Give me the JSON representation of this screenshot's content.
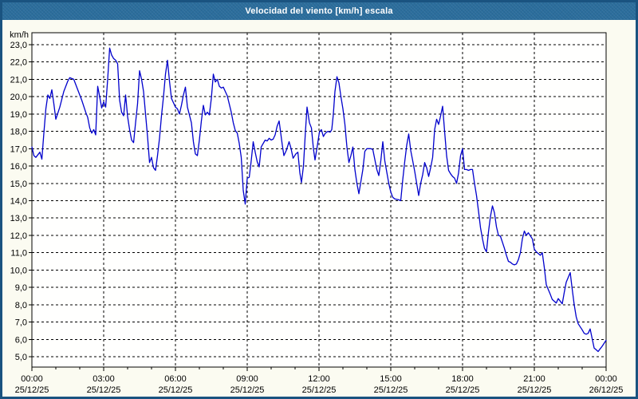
{
  "window": {
    "title": "Velocidad del viento [km/h] escala"
  },
  "colors": {
    "titlebar_bg": "#2b6d9c",
    "titlebar_text": "#ffffff",
    "window_border": "#1a5380",
    "window_bg": "#fbfbf1",
    "plot_bg": "#fffffe",
    "grid": "#000000",
    "line": "#0000cc",
    "label": "#000000"
  },
  "chart_data": {
    "type": "line",
    "title": "Velocidad del viento [km/h] escala",
    "ylabel": "km/h",
    "xlabel": "",
    "legend": "none",
    "grid": "dashed",
    "ylim": [
      4.4,
      23.7
    ],
    "y_ticks": {
      "min": 5,
      "max": 23,
      "step": 1,
      "labels": [
        "23,0",
        "22,0",
        "21,0",
        "20,0",
        "19,0",
        "18,0",
        "17,0",
        "16,0",
        "15,0",
        "14,0",
        "13,0",
        "12,0",
        "11,0",
        "10,0",
        "9,0",
        "8,0",
        "7,0",
        "6,0",
        "5,0"
      ]
    },
    "x_range_minutes": [
      0,
      1440
    ],
    "x_minor_tick_minutes": 60,
    "x_major_gridline_minutes": 180,
    "x_ticks": [
      {
        "minutes": 0,
        "time": "00:00",
        "date": "25/12/25"
      },
      {
        "minutes": 180,
        "time": "03:00",
        "date": "25/12/25"
      },
      {
        "minutes": 360,
        "time": "06:00",
        "date": "25/12/25"
      },
      {
        "minutes": 540,
        "time": "09:00",
        "date": "25/12/25"
      },
      {
        "minutes": 720,
        "time": "12:00",
        "date": "25/12/25"
      },
      {
        "minutes": 900,
        "time": "15:00",
        "date": "25/12/25"
      },
      {
        "minutes": 1080,
        "time": "18:00",
        "date": "25/12/25"
      },
      {
        "minutes": 1260,
        "time": "21:00",
        "date": "25/12/25"
      },
      {
        "minutes": 1440,
        "time": "00:00",
        "date": "26/12/25"
      }
    ],
    "series": [
      {
        "name": "Velocidad del viento",
        "color": "#0000cc",
        "points": [
          [
            0,
            17.1
          ],
          [
            5,
            16.6
          ],
          [
            10,
            16.5
          ],
          [
            20,
            16.8
          ],
          [
            25,
            16.4
          ],
          [
            30,
            17.9
          ],
          [
            35,
            19.3
          ],
          [
            40,
            20.1
          ],
          [
            45,
            19.9
          ],
          [
            50,
            20.4
          ],
          [
            55,
            19.6
          ],
          [
            60,
            18.7
          ],
          [
            70,
            19.4
          ],
          [
            80,
            20.3
          ],
          [
            90,
            20.9
          ],
          [
            95,
            21.1
          ],
          [
            105,
            21.0
          ],
          [
            115,
            20.4
          ],
          [
            125,
            19.8
          ],
          [
            135,
            19.1
          ],
          [
            140,
            18.8
          ],
          [
            145,
            18.2
          ],
          [
            150,
            17.9
          ],
          [
            155,
            18.1
          ],
          [
            160,
            17.8
          ],
          [
            165,
            20.6
          ],
          [
            170,
            20.0
          ],
          [
            175,
            19.35
          ],
          [
            180,
            19.7
          ],
          [
            185,
            19.4
          ],
          [
            190,
            21.0
          ],
          [
            195,
            22.8
          ],
          [
            200,
            22.4
          ],
          [
            205,
            22.2
          ],
          [
            210,
            22.1
          ],
          [
            215,
            21.9
          ],
          [
            220,
            19.8
          ],
          [
            225,
            19.1
          ],
          [
            230,
            18.9
          ],
          [
            235,
            20.1
          ],
          [
            240,
            18.85
          ],
          [
            245,
            18.1
          ],
          [
            250,
            17.5
          ],
          [
            255,
            17.35
          ],
          [
            260,
            18.5
          ],
          [
            265,
            19.6
          ],
          [
            270,
            21.5
          ],
          [
            275,
            21.0
          ],
          [
            280,
            20.3
          ],
          [
            285,
            19.0
          ],
          [
            290,
            17.7
          ],
          [
            295,
            16.2
          ],
          [
            300,
            16.5
          ],
          [
            305,
            15.9
          ],
          [
            310,
            15.75
          ],
          [
            315,
            16.6
          ],
          [
            320,
            17.6
          ],
          [
            325,
            18.9
          ],
          [
            330,
            20.0
          ],
          [
            335,
            21.3
          ],
          [
            340,
            22.1
          ],
          [
            345,
            20.9
          ],
          [
            350,
            19.9
          ],
          [
            360,
            19.4
          ],
          [
            365,
            19.3
          ],
          [
            370,
            19.0
          ],
          [
            375,
            19.5
          ],
          [
            380,
            20.1
          ],
          [
            385,
            20.55
          ],
          [
            390,
            19.4
          ],
          [
            400,
            18.5
          ],
          [
            405,
            17.4
          ],
          [
            410,
            16.7
          ],
          [
            415,
            16.6
          ],
          [
            420,
            17.5
          ],
          [
            425,
            18.6
          ],
          [
            430,
            19.5
          ],
          [
            435,
            18.95
          ],
          [
            440,
            19.1
          ],
          [
            445,
            18.95
          ],
          [
            450,
            19.9
          ],
          [
            455,
            21.3
          ],
          [
            460,
            20.85
          ],
          [
            465,
            21.0
          ],
          [
            470,
            20.6
          ],
          [
            475,
            20.5
          ],
          [
            480,
            20.55
          ],
          [
            485,
            20.3
          ],
          [
            490,
            20.05
          ],
          [
            500,
            19.1
          ],
          [
            505,
            18.5
          ],
          [
            510,
            18.05
          ],
          [
            515,
            17.9
          ],
          [
            520,
            17.3
          ],
          [
            525,
            16.5
          ],
          [
            530,
            14.6
          ],
          [
            535,
            13.8
          ],
          [
            540,
            15.3
          ],
          [
            545,
            15.35
          ],
          [
            550,
            16.3
          ],
          [
            555,
            17.4
          ],
          [
            560,
            16.8
          ],
          [
            565,
            16.25
          ],
          [
            570,
            15.95
          ],
          [
            575,
            17.1
          ],
          [
            585,
            17.5
          ],
          [
            590,
            17.45
          ],
          [
            595,
            17.6
          ],
          [
            600,
            17.5
          ],
          [
            605,
            17.55
          ],
          [
            610,
            17.8
          ],
          [
            615,
            18.3
          ],
          [
            620,
            18.6
          ],
          [
            628,
            17.2
          ],
          [
            632,
            16.6
          ],
          [
            638,
            16.9
          ],
          [
            645,
            17.4
          ],
          [
            650,
            17.0
          ],
          [
            655,
            16.45
          ],
          [
            662,
            16.7
          ],
          [
            667,
            16.8
          ],
          [
            672,
            15.6
          ],
          [
            676,
            15.05
          ],
          [
            681,
            16.0
          ],
          [
            686,
            18.0
          ],
          [
            690,
            19.4
          ],
          [
            696,
            18.5
          ],
          [
            701,
            18.2
          ],
          [
            706,
            17.0
          ],
          [
            710,
            16.35
          ],
          [
            716,
            17.2
          ],
          [
            721,
            17.95
          ],
          [
            726,
            18.1
          ],
          [
            731,
            17.7
          ],
          [
            736,
            17.9
          ],
          [
            742,
            18.0
          ],
          [
            748,
            17.95
          ],
          [
            752,
            18.1
          ],
          [
            756,
            19.0
          ],
          [
            760,
            20.3
          ],
          [
            765,
            21.15
          ],
          [
            770,
            20.8
          ],
          [
            775,
            20.0
          ],
          [
            780,
            19.3
          ],
          [
            785,
            18.4
          ],
          [
            790,
            17.1
          ],
          [
            795,
            16.2
          ],
          [
            800,
            16.6
          ],
          [
            805,
            17.1
          ],
          [
            810,
            15.8
          ],
          [
            815,
            15.0
          ],
          [
            820,
            14.4
          ],
          [
            825,
            15.1
          ],
          [
            830,
            15.8
          ],
          [
            835,
            16.85
          ],
          [
            840,
            17.0
          ],
          [
            850,
            17.0
          ],
          [
            855,
            16.95
          ],
          [
            865,
            15.8
          ],
          [
            870,
            15.45
          ],
          [
            875,
            16.3
          ],
          [
            880,
            17.4
          ],
          [
            885,
            16.3
          ],
          [
            890,
            15.65
          ],
          [
            895,
            15.0
          ],
          [
            900,
            14.5
          ],
          [
            905,
            14.2
          ],
          [
            910,
            14.1
          ],
          [
            920,
            14.05
          ],
          [
            925,
            14.0
          ],
          [
            930,
            15.2
          ],
          [
            935,
            16.25
          ],
          [
            940,
            17.2
          ],
          [
            945,
            17.85
          ],
          [
            950,
            16.9
          ],
          [
            955,
            16.3
          ],
          [
            960,
            15.7
          ],
          [
            965,
            15.0
          ],
          [
            970,
            14.3
          ],
          [
            975,
            15.0
          ],
          [
            980,
            15.5
          ],
          [
            985,
            16.2
          ],
          [
            990,
            15.9
          ],
          [
            995,
            15.4
          ],
          [
            1000,
            15.9
          ],
          [
            1005,
            16.5
          ],
          [
            1010,
            18.1
          ],
          [
            1015,
            18.7
          ],
          [
            1020,
            18.4
          ],
          [
            1025,
            18.9
          ],
          [
            1030,
            19.45
          ],
          [
            1035,
            18.0
          ],
          [
            1040,
            16.6
          ],
          [
            1045,
            15.75
          ],
          [
            1050,
            15.55
          ],
          [
            1055,
            15.4
          ],
          [
            1060,
            15.3
          ],
          [
            1065,
            15.0
          ],
          [
            1070,
            15.6
          ],
          [
            1075,
            16.6
          ],
          [
            1080,
            17.0
          ],
          [
            1085,
            15.8
          ],
          [
            1090,
            15.8
          ],
          [
            1095,
            15.75
          ],
          [
            1100,
            15.8
          ],
          [
            1105,
            15.8
          ],
          [
            1110,
            15.0
          ],
          [
            1115,
            14.3
          ],
          [
            1120,
            13.4
          ],
          [
            1125,
            12.45
          ],
          [
            1130,
            11.8
          ],
          [
            1135,
            11.25
          ],
          [
            1140,
            11.05
          ],
          [
            1145,
            12.2
          ],
          [
            1150,
            13.1
          ],
          [
            1155,
            13.7
          ],
          [
            1160,
            13.3
          ],
          [
            1165,
            12.5
          ],
          [
            1170,
            12.0
          ],
          [
            1175,
            11.95
          ],
          [
            1180,
            11.6
          ],
          [
            1185,
            11.25
          ],
          [
            1190,
            10.85
          ],
          [
            1195,
            10.5
          ],
          [
            1200,
            10.45
          ],
          [
            1205,
            10.35
          ],
          [
            1210,
            10.3
          ],
          [
            1215,
            10.35
          ],
          [
            1220,
            10.6
          ],
          [
            1225,
            11.0
          ],
          [
            1230,
            11.8
          ],
          [
            1235,
            12.25
          ],
          [
            1240,
            12.0
          ],
          [
            1245,
            12.15
          ],
          [
            1255,
            11.8
          ],
          [
            1260,
            11.2
          ],
          [
            1265,
            11.05
          ],
          [
            1275,
            10.85
          ],
          [
            1280,
            11.0
          ],
          [
            1285,
            10.15
          ],
          [
            1290,
            9.15
          ],
          [
            1300,
            8.6
          ],
          [
            1305,
            8.3
          ],
          [
            1315,
            8.1
          ],
          [
            1320,
            8.35
          ],
          [
            1330,
            8.05
          ],
          [
            1335,
            8.7
          ],
          [
            1340,
            9.3
          ],
          [
            1350,
            9.85
          ],
          [
            1355,
            8.9
          ],
          [
            1360,
            8.0
          ],
          [
            1365,
            7.3
          ],
          [
            1370,
            6.9
          ],
          [
            1380,
            6.55
          ],
          [
            1385,
            6.35
          ],
          [
            1390,
            6.3
          ],
          [
            1395,
            6.35
          ],
          [
            1400,
            6.6
          ],
          [
            1410,
            5.5
          ],
          [
            1415,
            5.4
          ],
          [
            1420,
            5.3
          ],
          [
            1425,
            5.45
          ],
          [
            1430,
            5.6
          ],
          [
            1440,
            5.95
          ]
        ]
      }
    ]
  }
}
